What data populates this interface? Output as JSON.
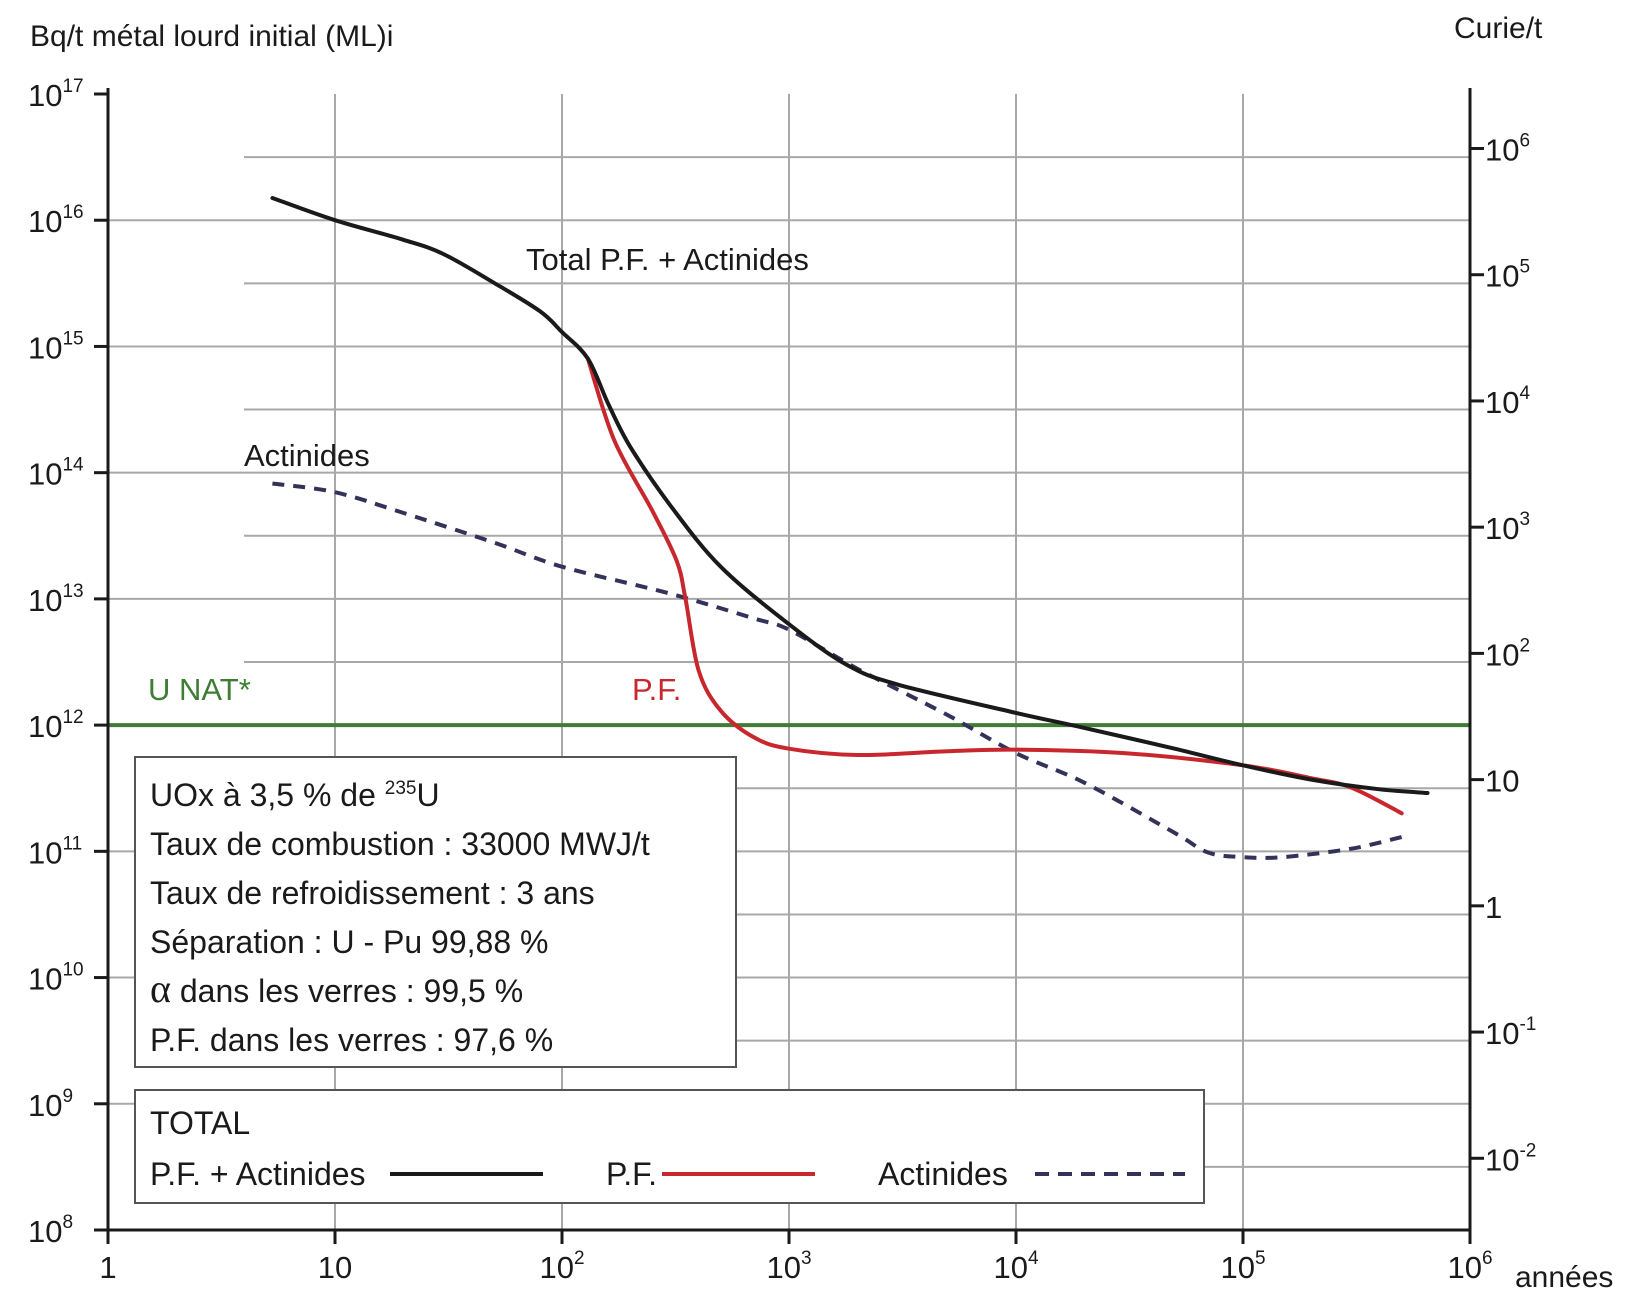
{
  "chart_data": {
    "type": "line",
    "ylabel_left": "Bq/t métal lourd initial (ML)i",
    "ylabel_right": "Curie/t",
    "xlabel": "années",
    "x_scale": "log",
    "y_scale": "log",
    "xlim": [
      1,
      1000000
    ],
    "ylim_left": [
      100000000,
      100000000000000000
    ],
    "ylim_right": [
      0.001,
      3000000
    ],
    "grid": true,
    "x_ticks": [
      {
        "value": 1,
        "base": "1",
        "exp": ""
      },
      {
        "value": 10,
        "base": "10",
        "exp": ""
      },
      {
        "value": 100,
        "base": "10",
        "exp": "2"
      },
      {
        "value": 1000,
        "base": "10",
        "exp": "3"
      },
      {
        "value": 10000,
        "base": "10",
        "exp": "4"
      },
      {
        "value": 100000,
        "base": "10",
        "exp": "5"
      },
      {
        "value": 1000000,
        "base": "10",
        "exp": "6"
      }
    ],
    "y_left_ticks": [
      {
        "value": 100000000,
        "base": "10",
        "exp": "8"
      },
      {
        "value": 1000000000,
        "base": "10",
        "exp": "9"
      },
      {
        "value": 10000000000,
        "base": "10",
        "exp": "10"
      },
      {
        "value": 100000000000,
        "base": "10",
        "exp": "11"
      },
      {
        "value": 1000000000000,
        "base": "10",
        "exp": "12"
      },
      {
        "value": 10000000000000,
        "base": "10",
        "exp": "13"
      },
      {
        "value": 100000000000000,
        "base": "10",
        "exp": "14"
      },
      {
        "value": 1000000000000000,
        "base": "10",
        "exp": "15"
      },
      {
        "value": 10000000000000000,
        "base": "10",
        "exp": "16"
      },
      {
        "value": 100000000000000000,
        "base": "10",
        "exp": "17"
      }
    ],
    "y_right_ticks": [
      {
        "value": 1000000,
        "base": "10",
        "exp": "6"
      },
      {
        "value": 100000,
        "base": "10",
        "exp": "5"
      },
      {
        "value": 10000,
        "base": "10",
        "exp": "4"
      },
      {
        "value": 1000,
        "base": "10",
        "exp": "3"
      },
      {
        "value": 100,
        "base": "10",
        "exp": "2"
      },
      {
        "value": 10,
        "base": "10",
        "exp": ""
      },
      {
        "value": 1,
        "base": "1",
        "exp": ""
      },
      {
        "value": 0.1,
        "base": "10",
        "exp": "-1"
      },
      {
        "value": 0.01,
        "base": "10",
        "exp": "-2"
      }
    ],
    "series": [
      {
        "name": "P.F. + Actinides",
        "color": "#1a1a1a",
        "style": "solid",
        "points": [
          [
            5.3,
            15000000000000000
          ],
          [
            10,
            10000000000000000
          ],
          [
            20,
            7000000000000000
          ],
          [
            30,
            5400000000000000
          ],
          [
            50,
            3200000000000000
          ],
          [
            80,
            1900000000000000
          ],
          [
            100,
            1300000000000000
          ],
          [
            130,
            800000000000000
          ],
          [
            160,
            350000000000000
          ],
          [
            200,
            160000000000000
          ],
          [
            300,
            55000000000000
          ],
          [
            500,
            18000000000000
          ],
          [
            1000,
            6300000000000
          ],
          [
            1800,
            3000000000000
          ],
          [
            3000,
            2100000000000
          ],
          [
            10000,
            1250000000000
          ],
          [
            20000,
            950000000000
          ],
          [
            50000,
            650000000000
          ],
          [
            100000,
            480000000000
          ],
          [
            200000,
            370000000000
          ],
          [
            400000,
            310000000000
          ],
          [
            650000,
            290000000000
          ]
        ]
      },
      {
        "name": "P.F.",
        "color": "#c8282d",
        "style": "solid",
        "points": [
          [
            130,
            800000000000000
          ],
          [
            170,
            180000000000000
          ],
          [
            250,
            50000000000000
          ],
          [
            320,
            20000000000000
          ],
          [
            350,
            10000000000000
          ],
          [
            400,
            2700000000000
          ],
          [
            500,
            1300000000000
          ],
          [
            700,
            800000000000
          ],
          [
            1000,
            650000000000
          ],
          [
            2000,
            580000000000
          ],
          [
            5000,
            620000000000
          ],
          [
            10000,
            640000000000
          ],
          [
            30000,
            600000000000
          ],
          [
            100000,
            480000000000
          ],
          [
            200000,
            380000000000
          ],
          [
            300000,
            320000000000
          ],
          [
            500000,
            200000000000
          ]
        ]
      },
      {
        "name": "Actinides",
        "color": "#33335a",
        "style": "dashed",
        "points": [
          [
            5.3,
            82000000000000
          ],
          [
            10,
            70000000000000
          ],
          [
            20,
            48000000000000
          ],
          [
            50,
            28000000000000
          ],
          [
            100,
            18000000000000
          ],
          [
            300,
            11000000000000
          ],
          [
            700,
            7000000000000
          ],
          [
            1000,
            5700000000000
          ],
          [
            2000,
            2800000000000
          ],
          [
            5000,
            1200000000000
          ],
          [
            10000,
            600000000000
          ],
          [
            20000,
            350000000000
          ],
          [
            50000,
            140000000000
          ],
          [
            70000,
            98000000000
          ],
          [
            100000,
            90000000000
          ],
          [
            150000,
            90000000000
          ],
          [
            300000,
            105000000000
          ],
          [
            500000,
            130000000000
          ]
        ]
      }
    ],
    "reference_line": {
      "label": "U NAT*",
      "value": 1000000000000,
      "color": "#3e7d33"
    },
    "annotations": [
      {
        "text": "Total P.F. + Actinides",
        "color": "#1a1a1a"
      },
      {
        "text": "Actinides",
        "color": "#1a1a1a"
      },
      {
        "text": "P.F.",
        "color": "#c8282d"
      }
    ],
    "info_box": {
      "line1_text": "UOx à 3,5 % de ",
      "line1_sup": "235",
      "line1_tail": "U",
      "lines": [
        "Taux de combustion : 33000 MWJ/t",
        "Taux de refroidissement : 3 ans",
        "Séparation : U - Pu 99,88 %"
      ],
      "alpha_symbol": "α",
      "alpha_text": " dans les verres : 99,5 %",
      "last_line": "P.F. dans les verres : 97,6 %"
    },
    "legend": {
      "title": "TOTAL",
      "placement": "bottom-left",
      "items": [
        "P.F. + Actinides",
        "P.F.",
        "Actinides"
      ]
    }
  }
}
